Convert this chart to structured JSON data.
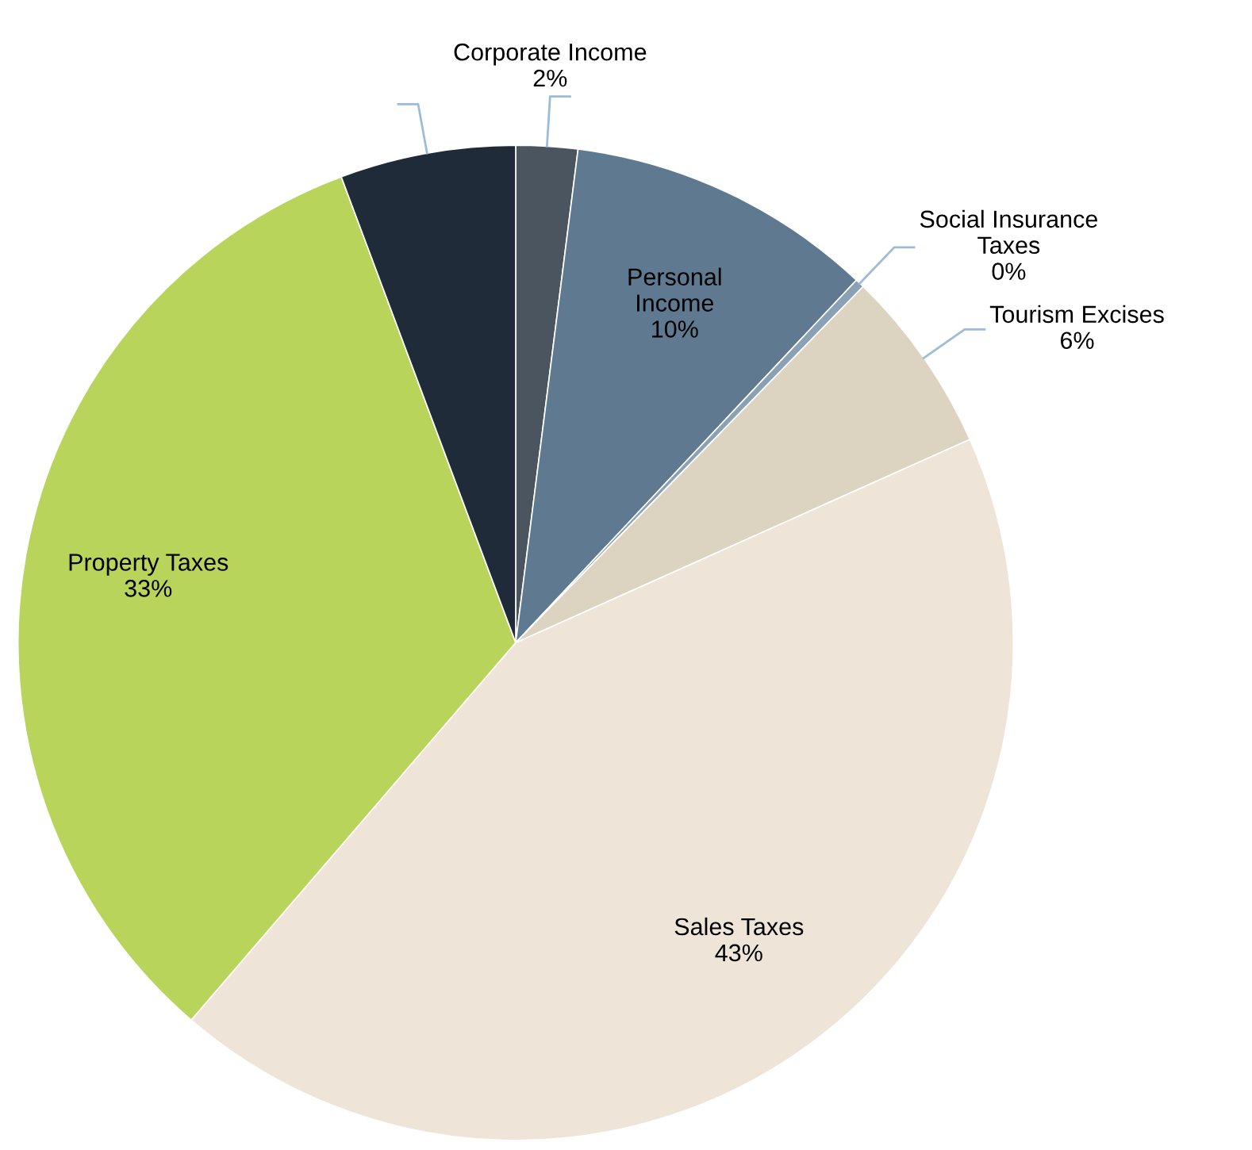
{
  "chart_data": {
    "type": "pie",
    "categories": [
      "Corporate Income",
      "Personal\nIncome",
      "Social Insurance\nTaxes",
      "Tourism Excises",
      "Sales Taxes",
      "Property Taxes",
      null
    ],
    "values": [
      2,
      10,
      0.3,
      6,
      43,
      33,
      5.7
    ],
    "value_labels": [
      "2%",
      "10%",
      "0%",
      "6%",
      "43%",
      "33%",
      null
    ],
    "colors": [
      "#4a5560",
      "#5f7a90",
      "#8aa0b5",
      "#dcd3c0",
      "#efe4d8",
      "#b9d45a",
      "#1f2b38"
    ],
    "legend": false
  }
}
